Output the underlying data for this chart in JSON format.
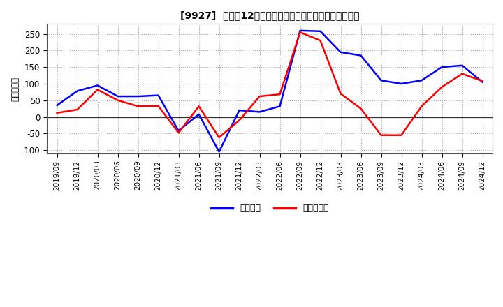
{
  "title": "[9927]  利益の12か月移動合計の対前年同期増減額の推移",
  "ylabel": "（百万円）",
  "legend_labels": [
    "経常利益",
    "当期純利益"
  ],
  "line_colors": [
    "#0000ff",
    "#ff0000"
  ],
  "background_color": "#ffffff",
  "plot_bg_color": "#ffffff",
  "grid_color": "#aaaaaa",
  "ylim": [
    -110,
    280
  ],
  "yticks": [
    -100,
    -50,
    0,
    50,
    100,
    150,
    200,
    250
  ],
  "x_labels": [
    "2019/09",
    "2019/12",
    "2020/03",
    "2020/06",
    "2020/09",
    "2020/12",
    "2021/03",
    "2021/06",
    "2021/09",
    "2021/12",
    "2022/03",
    "2022/06",
    "2022/09",
    "2022/12",
    "2023/03",
    "2023/06",
    "2023/09",
    "2023/12",
    "2024/03",
    "2024/06",
    "2024/09",
    "2024/12"
  ],
  "series_keiri": [
    35,
    78,
    95,
    62,
    62,
    65,
    -42,
    8,
    -105,
    20,
    15,
    32,
    260,
    258,
    195,
    185,
    110,
    100,
    110,
    150,
    155,
    105
  ],
  "series_toki": [
    12,
    22,
    82,
    50,
    32,
    33,
    -48,
    32,
    -62,
    -10,
    62,
    68,
    255,
    230,
    70,
    25,
    -55,
    -55,
    32,
    90,
    130,
    108
  ]
}
